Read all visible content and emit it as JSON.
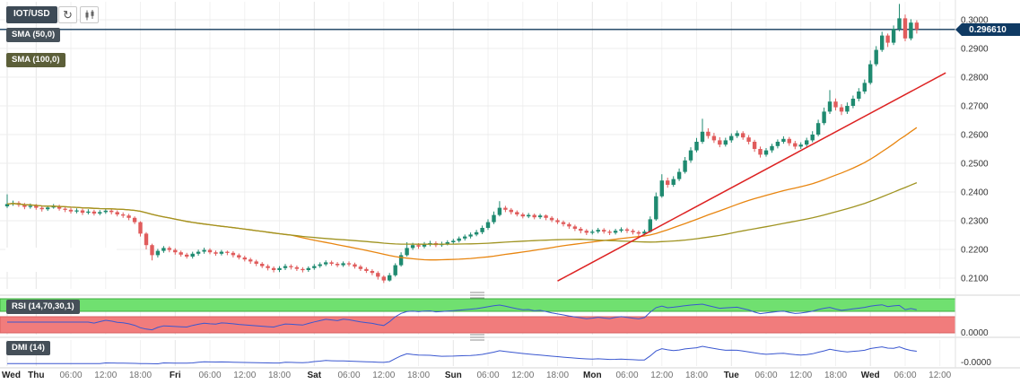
{
  "toolbar": {
    "symbol_label": "IOT/USD",
    "refresh_glyph": "↻",
    "refresh_icon": "refresh-icon",
    "chart_type_icon": "candlestick-chart-icon"
  },
  "indicator_badges": {
    "sma50": "SMA (50,0)",
    "sma100": "SMA (100,0)",
    "rsi": "RSI (14,70,30,1)",
    "dmi": "DMI (14)"
  },
  "price_axis": {
    "labels": [
      "0.3000",
      "0.2900",
      "0.2800",
      "0.2700",
      "0.2600",
      "0.2500",
      "0.2400",
      "0.2300",
      "0.2200",
      "0.2100"
    ],
    "last_price_label": "0.296610"
  },
  "indicator_axis": {
    "rsi_label": "0.0000",
    "dmi_label": "-0.0000"
  },
  "time_axis": {
    "ticks": [
      {
        "i": 0,
        "label": "Wed",
        "bold": true
      },
      {
        "i": 5,
        "label": "Thu",
        "bold": true
      },
      {
        "i": 11,
        "label": "06:00",
        "bold": false
      },
      {
        "i": 17,
        "label": "12:00",
        "bold": false
      },
      {
        "i": 23,
        "label": "18:00",
        "bold": false
      },
      {
        "i": 29,
        "label": "Fri",
        "bold": true
      },
      {
        "i": 35,
        "label": "06:00",
        "bold": false
      },
      {
        "i": 41,
        "label": "12:00",
        "bold": false
      },
      {
        "i": 47,
        "label": "18:00",
        "bold": false
      },
      {
        "i": 53,
        "label": "Sat",
        "bold": true
      },
      {
        "i": 59,
        "label": "06:00",
        "bold": false
      },
      {
        "i": 65,
        "label": "12:00",
        "bold": false
      },
      {
        "i": 71,
        "label": "18:00",
        "bold": false
      },
      {
        "i": 77,
        "label": "Sun",
        "bold": true
      },
      {
        "i": 83,
        "label": "06:00",
        "bold": false
      },
      {
        "i": 89,
        "label": "12:00",
        "bold": false
      },
      {
        "i": 95,
        "label": "18:00",
        "bold": false
      },
      {
        "i": 101,
        "label": "Mon",
        "bold": true
      },
      {
        "i": 107,
        "label": "06:00",
        "bold": false
      },
      {
        "i": 113,
        "label": "12:00",
        "bold": false
      },
      {
        "i": 119,
        "label": "18:00",
        "bold": false
      },
      {
        "i": 125,
        "label": "Tue",
        "bold": true
      },
      {
        "i": 131,
        "label": "06:00",
        "bold": false
      },
      {
        "i": 137,
        "label": "12:00",
        "bold": false
      },
      {
        "i": 143,
        "label": "18:00",
        "bold": false
      },
      {
        "i": 149,
        "label": "Wed",
        "bold": true
      },
      {
        "i": 155,
        "label": "06:00",
        "bold": false
      },
      {
        "i": 161,
        "label": "12:00",
        "bold": false
      }
    ]
  },
  "chart_data": {
    "type": "candlestick",
    "title": "IOT/USD",
    "interval_hint": "1 hour",
    "ylim": [
      0.20625,
      0.30625
    ],
    "y_grid_step": 0.01,
    "last_price": 0.29661,
    "candles": [
      [
        0.235,
        0.2392,
        0.2344,
        0.2358
      ],
      [
        0.2358,
        0.237,
        0.2352,
        0.2362
      ],
      [
        0.2362,
        0.2368,
        0.2348,
        0.2355
      ],
      [
        0.2355,
        0.2362,
        0.234,
        0.2348
      ],
      [
        0.2348,
        0.236,
        0.2342,
        0.2352
      ],
      [
        0.2352,
        0.2358,
        0.2338,
        0.2345
      ],
      [
        0.2345,
        0.2352,
        0.2332,
        0.234
      ],
      [
        0.234,
        0.2353,
        0.2334,
        0.2346
      ],
      [
        0.2346,
        0.2358,
        0.2342,
        0.235
      ],
      [
        0.235,
        0.2356,
        0.2335,
        0.2342
      ],
      [
        0.2342,
        0.2349,
        0.233,
        0.2338
      ],
      [
        0.2338,
        0.2345,
        0.2325,
        0.2332
      ],
      [
        0.2332,
        0.2343,
        0.2326,
        0.2336
      ],
      [
        0.2336,
        0.2342,
        0.232,
        0.2328
      ],
      [
        0.2328,
        0.234,
        0.2322,
        0.2332
      ],
      [
        0.2332,
        0.2338,
        0.2318,
        0.2325
      ],
      [
        0.2325,
        0.2337,
        0.2319,
        0.233
      ],
      [
        0.233,
        0.2343,
        0.2324,
        0.2335
      ],
      [
        0.2335,
        0.2341,
        0.2322,
        0.233
      ],
      [
        0.233,
        0.2336,
        0.2315,
        0.2322
      ],
      [
        0.2322,
        0.2329,
        0.231,
        0.2318
      ],
      [
        0.2318,
        0.2324,
        0.2302,
        0.231
      ],
      [
        0.231,
        0.2315,
        0.2288,
        0.2295
      ],
      [
        0.2295,
        0.2298,
        0.2245,
        0.2255
      ],
      [
        0.2255,
        0.226,
        0.22,
        0.2215
      ],
      [
        0.2215,
        0.222,
        0.2162,
        0.218
      ],
      [
        0.218,
        0.2202,
        0.2172,
        0.2195
      ],
      [
        0.2195,
        0.2212,
        0.2188,
        0.2205
      ],
      [
        0.2205,
        0.2211,
        0.219,
        0.2198
      ],
      [
        0.2198,
        0.2204,
        0.2182,
        0.219
      ],
      [
        0.219,
        0.2196,
        0.2175,
        0.2182
      ],
      [
        0.2182,
        0.2188,
        0.2168,
        0.2175
      ],
      [
        0.2175,
        0.2192,
        0.2168,
        0.2185
      ],
      [
        0.2185,
        0.2199,
        0.2178,
        0.2192
      ],
      [
        0.2192,
        0.2206,
        0.2185,
        0.2198
      ],
      [
        0.2198,
        0.2204,
        0.2183,
        0.219
      ],
      [
        0.219,
        0.2196,
        0.2178,
        0.2185
      ],
      [
        0.2185,
        0.2198,
        0.2179,
        0.2192
      ],
      [
        0.2192,
        0.2196,
        0.218,
        0.2188
      ],
      [
        0.2188,
        0.2194,
        0.2172,
        0.218
      ],
      [
        0.218,
        0.2186,
        0.2165,
        0.2172
      ],
      [
        0.2172,
        0.2178,
        0.2158,
        0.2165
      ],
      [
        0.2165,
        0.2171,
        0.215,
        0.2158
      ],
      [
        0.2158,
        0.2164,
        0.2142,
        0.215
      ],
      [
        0.215,
        0.2156,
        0.2135,
        0.2142
      ],
      [
        0.2142,
        0.2148,
        0.2127,
        0.2135
      ],
      [
        0.2135,
        0.2141,
        0.212,
        0.2128
      ],
      [
        0.2128,
        0.2142,
        0.2121,
        0.2135
      ],
      [
        0.2135,
        0.2149,
        0.2128,
        0.2142
      ],
      [
        0.2142,
        0.2148,
        0.213,
        0.2138
      ],
      [
        0.2138,
        0.2144,
        0.2125,
        0.2132
      ],
      [
        0.2132,
        0.2138,
        0.212,
        0.2128
      ],
      [
        0.2128,
        0.2141,
        0.2122,
        0.2135
      ],
      [
        0.2135,
        0.2149,
        0.2129,
        0.2142
      ],
      [
        0.2142,
        0.2155,
        0.2136,
        0.2148
      ],
      [
        0.2148,
        0.2162,
        0.2142,
        0.2155
      ],
      [
        0.2155,
        0.2161,
        0.2143,
        0.215
      ],
      [
        0.215,
        0.2156,
        0.2138,
        0.2145
      ],
      [
        0.2145,
        0.2158,
        0.2139,
        0.2152
      ],
      [
        0.2152,
        0.2158,
        0.2141,
        0.2148
      ],
      [
        0.2148,
        0.2154,
        0.2133,
        0.214
      ],
      [
        0.214,
        0.2146,
        0.2125,
        0.2132
      ],
      [
        0.2132,
        0.2138,
        0.2118,
        0.2125
      ],
      [
        0.2125,
        0.2131,
        0.211,
        0.2118
      ],
      [
        0.2118,
        0.2124,
        0.2095,
        0.2105
      ],
      [
        0.2105,
        0.211,
        0.2083,
        0.2092
      ],
      [
        0.2092,
        0.2118,
        0.2088,
        0.211
      ],
      [
        0.211,
        0.2152,
        0.2105,
        0.2145
      ],
      [
        0.2145,
        0.219,
        0.214,
        0.218
      ],
      [
        0.218,
        0.2225,
        0.2175,
        0.2205
      ],
      [
        0.2205,
        0.2223,
        0.2198,
        0.2215
      ],
      [
        0.2215,
        0.2222,
        0.2202,
        0.221
      ],
      [
        0.221,
        0.2226,
        0.2204,
        0.2218
      ],
      [
        0.2218,
        0.223,
        0.2211,
        0.2222
      ],
      [
        0.2222,
        0.2228,
        0.2208,
        0.2215
      ],
      [
        0.2215,
        0.2227,
        0.2209,
        0.222
      ],
      [
        0.222,
        0.2232,
        0.2214,
        0.2225
      ],
      [
        0.2225,
        0.2237,
        0.2218,
        0.223
      ],
      [
        0.223,
        0.2245,
        0.2224,
        0.2238
      ],
      [
        0.2238,
        0.2252,
        0.2231,
        0.2245
      ],
      [
        0.2245,
        0.2259,
        0.2238,
        0.2252
      ],
      [
        0.2252,
        0.2268,
        0.2246,
        0.226
      ],
      [
        0.226,
        0.2283,
        0.2253,
        0.2275
      ],
      [
        0.2275,
        0.2305,
        0.2268,
        0.2295
      ],
      [
        0.2295,
        0.2332,
        0.2288,
        0.232
      ],
      [
        0.232,
        0.2368,
        0.2315,
        0.2345
      ],
      [
        0.2345,
        0.2352,
        0.233,
        0.2338
      ],
      [
        0.2338,
        0.2344,
        0.2322,
        0.233
      ],
      [
        0.233,
        0.2336,
        0.2315,
        0.2322
      ],
      [
        0.2322,
        0.2328,
        0.2308,
        0.2315
      ],
      [
        0.2315,
        0.2327,
        0.2309,
        0.232
      ],
      [
        0.232,
        0.2325,
        0.2305,
        0.2312
      ],
      [
        0.2312,
        0.2324,
        0.2306,
        0.2318
      ],
      [
        0.2318,
        0.2322,
        0.2302,
        0.231
      ],
      [
        0.231,
        0.2316,
        0.2295,
        0.2302
      ],
      [
        0.2302,
        0.2308,
        0.2288,
        0.2295
      ],
      [
        0.2295,
        0.2301,
        0.228,
        0.2288
      ],
      [
        0.2288,
        0.2294,
        0.2272,
        0.228
      ],
      [
        0.228,
        0.2286,
        0.2264,
        0.2272
      ],
      [
        0.2272,
        0.2278,
        0.2256,
        0.2265
      ],
      [
        0.2265,
        0.2271,
        0.225,
        0.2258
      ],
      [
        0.2258,
        0.2269,
        0.2252,
        0.2262
      ],
      [
        0.2262,
        0.2275,
        0.2256,
        0.2268
      ],
      [
        0.2268,
        0.2274,
        0.2255,
        0.2262
      ],
      [
        0.2262,
        0.2268,
        0.225,
        0.2258
      ],
      [
        0.2258,
        0.2272,
        0.2252,
        0.2265
      ],
      [
        0.2265,
        0.2277,
        0.2259,
        0.227
      ],
      [
        0.227,
        0.2276,
        0.2257,
        0.2265
      ],
      [
        0.2265,
        0.2271,
        0.2252,
        0.226
      ],
      [
        0.226,
        0.2266,
        0.2247,
        0.2255
      ],
      [
        0.2255,
        0.2269,
        0.2249,
        0.2262
      ],
      [
        0.2262,
        0.2315,
        0.2258,
        0.2305
      ],
      [
        0.2305,
        0.2398,
        0.23,
        0.2385
      ],
      [
        0.2385,
        0.2462,
        0.238,
        0.244
      ],
      [
        0.244,
        0.245,
        0.2415,
        0.2425
      ],
      [
        0.2425,
        0.2455,
        0.2418,
        0.2445
      ],
      [
        0.2445,
        0.2482,
        0.2438,
        0.247
      ],
      [
        0.247,
        0.2522,
        0.2464,
        0.251
      ],
      [
        0.251,
        0.2556,
        0.2502,
        0.2545
      ],
      [
        0.2545,
        0.2588,
        0.2538,
        0.2575
      ],
      [
        0.2575,
        0.2655,
        0.2568,
        0.261
      ],
      [
        0.261,
        0.2622,
        0.2586,
        0.2595
      ],
      [
        0.2595,
        0.2606,
        0.2571,
        0.258
      ],
      [
        0.258,
        0.2591,
        0.2556,
        0.2565
      ],
      [
        0.2565,
        0.2589,
        0.2558,
        0.258
      ],
      [
        0.258,
        0.2604,
        0.2572,
        0.2595
      ],
      [
        0.2595,
        0.2614,
        0.2588,
        0.2605
      ],
      [
        0.2605,
        0.2612,
        0.2582,
        0.259
      ],
      [
        0.259,
        0.2598,
        0.2566,
        0.2575
      ],
      [
        0.2575,
        0.2582,
        0.254,
        0.255
      ],
      [
        0.255,
        0.2558,
        0.252,
        0.253
      ],
      [
        0.253,
        0.2553,
        0.2523,
        0.2545
      ],
      [
        0.2545,
        0.2568,
        0.2537,
        0.256
      ],
      [
        0.256,
        0.2583,
        0.2552,
        0.2575
      ],
      [
        0.2575,
        0.2594,
        0.2568,
        0.2585
      ],
      [
        0.2585,
        0.2592,
        0.2561,
        0.257
      ],
      [
        0.257,
        0.2578,
        0.2549,
        0.2558
      ],
      [
        0.2558,
        0.2573,
        0.255,
        0.2565
      ],
      [
        0.2565,
        0.2589,
        0.2558,
        0.258
      ],
      [
        0.258,
        0.2612,
        0.2573,
        0.26
      ],
      [
        0.26,
        0.2652,
        0.2594,
        0.264
      ],
      [
        0.264,
        0.2694,
        0.2633,
        0.268
      ],
      [
        0.268,
        0.2755,
        0.2672,
        0.2715
      ],
      [
        0.2715,
        0.2726,
        0.2684,
        0.2695
      ],
      [
        0.2695,
        0.2706,
        0.2668,
        0.268
      ],
      [
        0.268,
        0.2712,
        0.2672,
        0.27
      ],
      [
        0.27,
        0.2736,
        0.2692,
        0.2725
      ],
      [
        0.2725,
        0.2762,
        0.2716,
        0.275
      ],
      [
        0.275,
        0.2792,
        0.2742,
        0.278
      ],
      [
        0.278,
        0.2858,
        0.2774,
        0.2845
      ],
      [
        0.2845,
        0.2908,
        0.2838,
        0.2895
      ],
      [
        0.2895,
        0.2958,
        0.2888,
        0.2945
      ],
      [
        0.2945,
        0.2952,
        0.2905,
        0.292
      ],
      [
        0.292,
        0.298,
        0.2912,
        0.2968
      ],
      [
        0.2968,
        0.3055,
        0.296,
        0.3005
      ],
      [
        0.3005,
        0.3018,
        0.2925,
        0.2935
      ],
      [
        0.2935,
        0.3002,
        0.2928,
        0.299
      ],
      [
        0.299,
        0.2998,
        0.2952,
        0.29661
      ]
    ],
    "overlays": {
      "sma": [
        {
          "period": 50,
          "color": "#e8850f"
        },
        {
          "period": 100,
          "color": "#a09422"
        }
      ],
      "trendline": {
        "from": {
          "index": 95,
          "price": 0.209
        },
        "to": {
          "index": 162,
          "price": 0.2815
        },
        "color": "#dd2222"
      }
    },
    "rsi": {
      "period": 14,
      "upper": 70,
      "lower": 30,
      "smoothing": 1,
      "line_color": "#3a57d0",
      "upper_band_color": "#70e070",
      "lower_band_color": "#f17c7c"
    },
    "dmi": {
      "period": 14,
      "line_color": "#3a57d0"
    },
    "colors": {
      "up": "#1f8a70",
      "down": "#e05c5c",
      "last_price_line": "#123a5c",
      "grid": "#ececec",
      "axis_text": "#333333",
      "badge_bg": "#454f58"
    }
  }
}
